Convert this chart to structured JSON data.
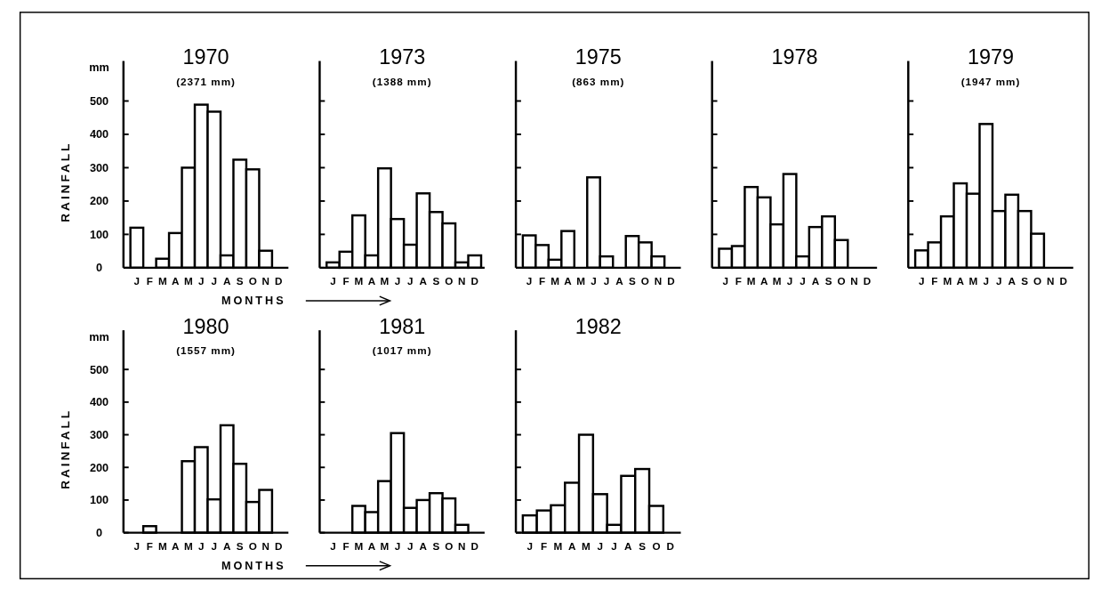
{
  "chart_data": [
    {
      "type": "bar",
      "title": "1970",
      "subtitle": "(2371 mm)",
      "ylabel": "RAINFALL",
      "xlabel": "MONTHS",
      "annotations": [
        "mm"
      ],
      "categories": [
        "J",
        "F",
        "M",
        "A",
        "M",
        "J",
        "J",
        "A",
        "S",
        "O",
        "N",
        "D"
      ],
      "values": [
        120,
        null,
        27,
        104,
        300,
        489,
        468,
        37,
        324,
        295,
        51,
        null
      ],
      "color": "#ffffff",
      "ylim": [
        0,
        620
      ],
      "yticks": [
        0,
        100,
        200,
        300,
        400,
        500
      ]
    },
    {
      "type": "bar",
      "title": "1973",
      "subtitle": "(1388 mm)",
      "categories": [
        "J",
        "F",
        "M",
        "A",
        "M",
        "J",
        "J",
        "A",
        "S",
        "O",
        "N",
        "D"
      ],
      "values": [
        16,
        48,
        157,
        37,
        298,
        146,
        69,
        223,
        167,
        133,
        16,
        37
      ],
      "color": "#ffffff",
      "ylim": [
        0,
        620
      ],
      "yticks": [
        0,
        100,
        200,
        300,
        400,
        500
      ],
      "tick_labels": "x"
    },
    {
      "type": "bar",
      "title": "1975",
      "subtitle": "(863 mm)",
      "categories": [
        "J",
        "F",
        "M",
        "A",
        "M",
        "J",
        "J",
        "A",
        "S",
        "O",
        "N",
        "D"
      ],
      "values": [
        97,
        68,
        24,
        110,
        null,
        271,
        34,
        null,
        95,
        76,
        34,
        null
      ],
      "color": "#ffffff",
      "ylim": [
        0,
        620
      ],
      "yticks": [
        0,
        100,
        200,
        300,
        400,
        500
      ],
      "tick_labels": "x"
    },
    {
      "type": "bar",
      "title": "1978",
      "categories": [
        "J",
        "F",
        "M",
        "A",
        "M",
        "J",
        "J",
        "A",
        "S",
        "O",
        "N",
        "D"
      ],
      "values": [
        57,
        65,
        242,
        211,
        130,
        281,
        34,
        122,
        154,
        83,
        null,
        null
      ],
      "color": "#ffffff",
      "ylim": [
        0,
        620
      ],
      "yticks": [
        0,
        100,
        200,
        300,
        400,
        500
      ],
      "tick_labels": "x"
    },
    {
      "type": "bar",
      "title": "1979",
      "subtitle": "(1947 mm)",
      "categories": [
        "J",
        "F",
        "M",
        "A",
        "M",
        "J",
        "J",
        "A",
        "S",
        "O",
        "N",
        "D"
      ],
      "values": [
        52,
        76,
        154,
        253,
        222,
        431,
        170,
        219,
        170,
        102,
        null,
        null
      ],
      "color": "#ffffff",
      "ylim": [
        0,
        620
      ],
      "yticks": [
        0,
        100,
        200,
        300,
        400,
        500
      ],
      "tick_labels": "x"
    },
    {
      "type": "bar",
      "title": "1980",
      "subtitle": "(1557 mm)",
      "ylabel": "RAINFALL",
      "xlabel": "MONTHS",
      "annotations": [
        "mm"
      ],
      "categories": [
        "J",
        "F",
        "M",
        "A",
        "M",
        "J",
        "J",
        "A",
        "S",
        "O",
        "N",
        "D"
      ],
      "values": [
        null,
        20,
        null,
        null,
        219,
        262,
        102,
        329,
        211,
        94,
        131,
        null
      ],
      "color": "#ffffff",
      "ylim": [
        0,
        620
      ],
      "yticks": [
        0,
        100,
        200,
        300,
        400,
        500
      ]
    },
    {
      "type": "bar",
      "title": "1981",
      "subtitle": "(1017 mm)",
      "categories": [
        "J",
        "F",
        "M",
        "A",
        "M",
        "J",
        "J",
        "A",
        "S",
        "O",
        "N",
        "D"
      ],
      "values": [
        null,
        null,
        82,
        63,
        158,
        305,
        76,
        100,
        121,
        105,
        24,
        null
      ],
      "color": "#ffffff",
      "ylim": [
        0,
        620
      ],
      "yticks": [
        0,
        100,
        200,
        300,
        400,
        500
      ],
      "tick_labels": "x"
    },
    {
      "type": "bar",
      "title": "1982",
      "categories": [
        "J",
        "F",
        "M",
        "A",
        "M",
        "J",
        "J",
        "A",
        "S",
        "O",
        "D"
      ],
      "values": [
        53,
        68,
        84,
        153,
        300,
        118,
        24,
        174,
        195,
        82,
        null
      ],
      "color": "#ffffff",
      "ylim": [
        0,
        620
      ],
      "yticks": [
        0,
        100,
        200,
        300,
        400,
        500
      ],
      "tick_labels": "x"
    }
  ]
}
